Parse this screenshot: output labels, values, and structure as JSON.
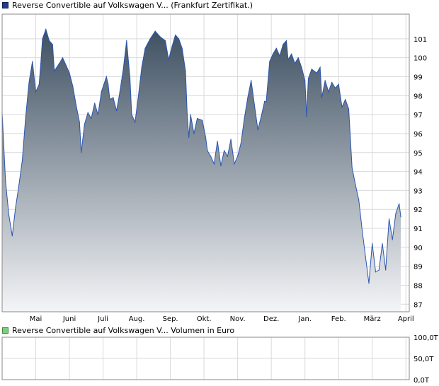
{
  "legend": {
    "price_label": "Reverse Convertible auf Volkswagen V... (Frankfurt Zertifikat.)",
    "volume_label": "Reverse Convertible auf Volkswagen V... Volumen in Euro"
  },
  "colors": {
    "line": "#2a55b0",
    "fill_top": "#3e5062",
    "fill_bottom": "#f4f5f7",
    "grid": "#d9d9d9",
    "axis": "#888888"
  },
  "chart_data": [
    {
      "type": "area",
      "title": "",
      "x_axis_labels": [
        "Mai",
        "Juni",
        "Juli",
        "Aug.",
        "Sep.",
        "Okt.",
        "Nov.",
        "Dez.",
        "Jan.",
        "Feb.",
        "März",
        "April"
      ],
      "y_ticks": [
        87,
        88,
        89,
        90,
        91,
        92,
        93,
        94,
        95,
        96,
        97,
        98,
        99,
        100,
        101
      ],
      "ylim": [
        86.6,
        102.3
      ],
      "xlim": [
        0,
        12.1
      ],
      "grid": true,
      "y_axis_position": "right",
      "series": [
        {
          "values": [
            [
              0.0,
              97.1
            ],
            [
              0.1,
              93.5
            ],
            [
              0.2,
              91.7
            ],
            [
              0.3,
              90.6
            ],
            [
              0.4,
              92.1
            ],
            [
              0.5,
              93.3
            ],
            [
              0.6,
              94.6
            ],
            [
              0.7,
              96.9
            ],
            [
              0.8,
              98.7
            ],
            [
              0.9,
              99.8
            ],
            [
              1.0,
              98.2
            ],
            [
              1.1,
              98.6
            ],
            [
              1.15,
              99.7
            ],
            [
              1.2,
              101.0
            ],
            [
              1.3,
              101.5
            ],
            [
              1.4,
              100.9
            ],
            [
              1.5,
              100.7
            ],
            [
              1.55,
              99.3
            ],
            [
              1.7,
              99.7
            ],
            [
              1.8,
              100.0
            ],
            [
              1.9,
              99.6
            ],
            [
              2.0,
              99.2
            ],
            [
              2.1,
              98.5
            ],
            [
              2.2,
              97.5
            ],
            [
              2.3,
              96.6
            ],
            [
              2.35,
              95.0
            ],
            [
              2.45,
              96.5
            ],
            [
              2.55,
              97.1
            ],
            [
              2.65,
              96.8
            ],
            [
              2.75,
              97.6
            ],
            [
              2.85,
              97.0
            ],
            [
              2.95,
              98.2
            ],
            [
              3.1,
              99.0
            ],
            [
              3.15,
              98.6
            ],
            [
              3.2,
              97.8
            ],
            [
              3.3,
              97.9
            ],
            [
              3.4,
              97.2
            ],
            [
              3.5,
              98.2
            ],
            [
              3.6,
              99.4
            ],
            [
              3.7,
              100.9
            ],
            [
              3.8,
              98.9
            ],
            [
              3.85,
              97.0
            ],
            [
              3.95,
              96.6
            ],
            [
              4.05,
              98.0
            ],
            [
              4.15,
              99.5
            ],
            [
              4.25,
              100.5
            ],
            [
              4.4,
              101.0
            ],
            [
              4.55,
              101.4
            ],
            [
              4.7,
              101.1
            ],
            [
              4.85,
              100.9
            ],
            [
              4.95,
              99.9
            ],
            [
              5.05,
              100.6
            ],
            [
              5.15,
              101.2
            ],
            [
              5.25,
              101.0
            ],
            [
              5.35,
              100.5
            ],
            [
              5.45,
              99.3
            ],
            [
              5.5,
              97.0
            ],
            [
              5.55,
              95.8
            ],
            [
              5.6,
              97.0
            ],
            [
              5.7,
              96.0
            ],
            [
              5.8,
              96.8
            ],
            [
              5.95,
              96.7
            ],
            [
              6.05,
              95.8
            ],
            [
              6.1,
              95.1
            ],
            [
              6.2,
              94.8
            ],
            [
              6.3,
              94.4
            ],
            [
              6.4,
              95.6
            ],
            [
              6.5,
              94.3
            ],
            [
              6.6,
              95.1
            ],
            [
              6.7,
              94.8
            ],
            [
              6.8,
              95.7
            ],
            [
              6.9,
              94.4
            ],
            [
              7.0,
              94.8
            ],
            [
              7.1,
              95.5
            ],
            [
              7.2,
              96.8
            ],
            [
              7.3,
              97.9
            ],
            [
              7.4,
              98.8
            ],
            [
              7.5,
              97.5
            ],
            [
              7.6,
              96.2
            ],
            [
              7.7,
              96.9
            ],
            [
              7.8,
              97.7
            ],
            [
              7.85,
              97.7
            ],
            [
              7.95,
              99.8
            ],
            [
              8.05,
              100.2
            ],
            [
              8.15,
              100.5
            ],
            [
              8.25,
              100.1
            ],
            [
              8.35,
              100.7
            ],
            [
              8.45,
              100.9
            ],
            [
              8.5,
              99.9
            ],
            [
              8.6,
              100.2
            ],
            [
              8.7,
              99.7
            ],
            [
              8.8,
              100.0
            ],
            [
              8.9,
              99.5
            ],
            [
              9.0,
              98.8
            ],
            [
              9.05,
              96.9
            ],
            [
              9.1,
              98.9
            ],
            [
              9.2,
              99.4
            ],
            [
              9.35,
              99.2
            ],
            [
              9.45,
              99.5
            ],
            [
              9.5,
              97.9
            ],
            [
              9.6,
              98.8
            ],
            [
              9.7,
              98.2
            ],
            [
              9.8,
              98.7
            ],
            [
              9.9,
              98.4
            ],
            [
              10.0,
              98.6
            ],
            [
              10.1,
              97.4
            ],
            [
              10.2,
              97.8
            ],
            [
              10.3,
              97.3
            ],
            [
              10.4,
              94.2
            ],
            [
              10.5,
              93.3
            ],
            [
              10.6,
              92.5
            ],
            [
              10.7,
              90.9
            ],
            [
              10.8,
              89.5
            ],
            [
              10.9,
              88.1
            ],
            [
              11.0,
              90.2
            ],
            [
              11.1,
              88.7
            ],
            [
              11.2,
              88.8
            ],
            [
              11.3,
              90.2
            ],
            [
              11.4,
              88.8
            ],
            [
              11.5,
              91.5
            ],
            [
              11.6,
              90.4
            ],
            [
              11.7,
              91.8
            ],
            [
              11.8,
              92.3
            ],
            [
              11.85,
              91.6
            ]
          ]
        }
      ]
    },
    {
      "type": "bar",
      "title": "",
      "y_ticks": [
        "0,0T",
        "50,0T",
        "100,0T"
      ],
      "y_tick_values": [
        0,
        50,
        100
      ],
      "ylim": [
        0,
        100
      ],
      "grid": true,
      "y_axis_position": "right",
      "values": []
    }
  ]
}
